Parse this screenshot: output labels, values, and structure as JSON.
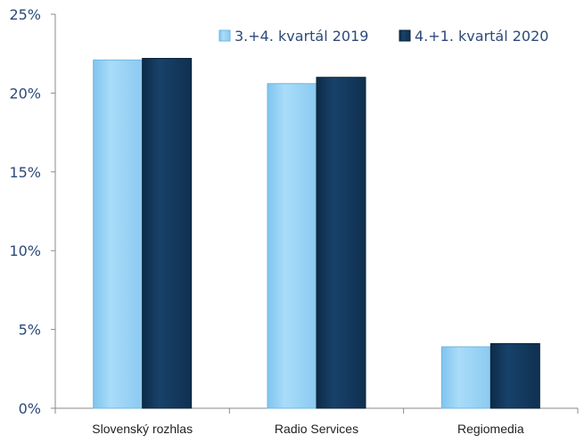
{
  "chart_data": {
    "type": "bar",
    "categories": [
      "Slovenský rozhlas",
      "Radio Services",
      "Regiomedia"
    ],
    "series": [
      {
        "name": "3.+4. kvartál 2019",
        "values": [
          22.1,
          20.6,
          3.9
        ],
        "color": "#99d3f5"
      },
      {
        "name": "4.+1. kvartál 2020",
        "values": [
          22.2,
          21.0,
          4.1
        ],
        "color": "#13385b"
      }
    ],
    "ylim": [
      0,
      25
    ],
    "yticks": [
      0,
      5,
      10,
      15,
      20,
      25
    ],
    "ytick_labels": [
      "0%",
      "5%",
      "10%",
      "15%",
      "20%",
      "25%"
    ],
    "title": "",
    "xlabel": "",
    "ylabel": "",
    "grid": false,
    "legend_position": "top-right"
  }
}
